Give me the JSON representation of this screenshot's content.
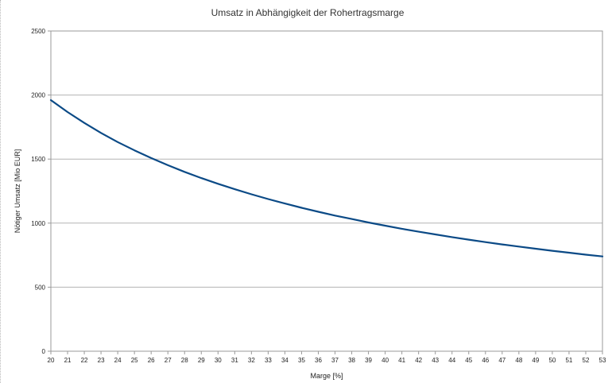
{
  "chart_data": {
    "type": "line",
    "title": "Umsatz in Abhängigkeit der Rohertragsmarge",
    "xlabel": "Marge [%]",
    "ylabel": "Nötiger Umsatz [Mio EUR]",
    "xlim": [
      20,
      53
    ],
    "ylim": [
      0,
      2500
    ],
    "xticks": [
      20,
      21,
      22,
      23,
      24,
      25,
      26,
      27,
      28,
      29,
      30,
      31,
      32,
      33,
      34,
      35,
      36,
      37,
      38,
      39,
      40,
      41,
      42,
      43,
      44,
      45,
      46,
      47,
      48,
      49,
      50,
      51,
      52,
      53
    ],
    "yticks": [
      0,
      500,
      1000,
      1500,
      2000,
      2500
    ],
    "grid": "horizontal",
    "legend": "none",
    "series": [
      {
        "color": "#0b4a86",
        "x": [
          20,
          21,
          22,
          23,
          24,
          25,
          26,
          27,
          28,
          29,
          30,
          31,
          32,
          33,
          34,
          35,
          36,
          37,
          38,
          39,
          40,
          41,
          42,
          43,
          44,
          45,
          46,
          47,
          48,
          49,
          50,
          51,
          52,
          53
        ],
        "values": [
          1960,
          1867,
          1782,
          1704,
          1633,
          1568,
          1508,
          1452,
          1400,
          1352,
          1307,
          1265,
          1225,
          1188,
          1153,
          1120,
          1089,
          1059,
          1032,
          1005,
          980,
          956,
          933,
          912,
          891,
          871,
          852,
          834,
          817,
          800,
          784,
          769,
          754,
          740
        ]
      }
    ]
  }
}
